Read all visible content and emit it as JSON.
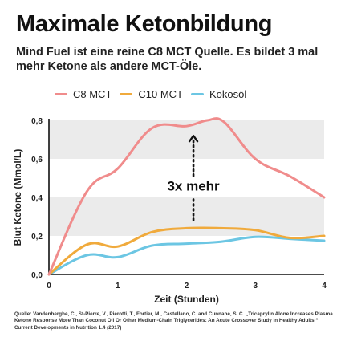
{
  "title": "Maximale Ketonbildung",
  "subtitle": "Mind Fuel ist eine reine C8 MCT Quelle. Es bildet 3 mal mehr Ketone als andere MCT-Öle.",
  "legend": [
    {
      "label": "C8 MCT",
      "color": "#f08c8c"
    },
    {
      "label": "C10 MCT",
      "color": "#f0aa3c"
    },
    {
      "label": "Kokosöl",
      "color": "#6cc6e3"
    }
  ],
  "citation": "Quelle: Vandenberghe, C., St-Pierre, V., Pierotti, T., Fortier, M., Castellano, C. and Cunnane, S. C. „Tricaprylin Alone Increases Plasma Ketone Response More Than Coconut Oil Or Other Medium-Chain Triglycerides: An Acute Crossover Study In Healthy Adults.“ Current Developments in Nutrition 1.4 (2017)",
  "chart_data": {
    "type": "line",
    "xlabel": "Zeit (Stunden)",
    "ylabel": "Blut Ketone (Mmol/L)",
    "xlim": [
      0,
      4
    ],
    "ylim": [
      0,
      0.8
    ],
    "x_ticks": [
      "0",
      "1",
      "2",
      "3",
      "4"
    ],
    "y_ticks": [
      "0,0",
      "0,2",
      "0,4",
      "0,6",
      "0,8"
    ],
    "grid": "horizontal bands",
    "legend_position": "top",
    "series": [
      {
        "name": "C8 MCT",
        "color": "#f08c8c",
        "x": [
          0,
          0.55,
          1.0,
          1.5,
          2.0,
          2.3,
          2.55,
          3.0,
          3.5,
          4.0
        ],
        "y": [
          0,
          0.43,
          0.55,
          0.76,
          0.77,
          0.8,
          0.79,
          0.6,
          0.51,
          0.4
        ]
      },
      {
        "name": "C10 MCT",
        "color": "#f0aa3c",
        "x": [
          0,
          0.55,
          1.0,
          1.5,
          2.0,
          2.5,
          3.0,
          3.5,
          4.0
        ],
        "y": [
          0,
          0.155,
          0.145,
          0.22,
          0.24,
          0.24,
          0.23,
          0.19,
          0.2
        ]
      },
      {
        "name": "Kokosöl",
        "color": "#6cc6e3",
        "x": [
          0,
          0.55,
          1.0,
          1.5,
          2.0,
          2.5,
          3.0,
          3.5,
          4.0
        ],
        "y": [
          0,
          0.1,
          0.09,
          0.15,
          0.16,
          0.17,
          0.195,
          0.185,
          0.175
        ]
      }
    ],
    "annotation": "3x mehr"
  }
}
